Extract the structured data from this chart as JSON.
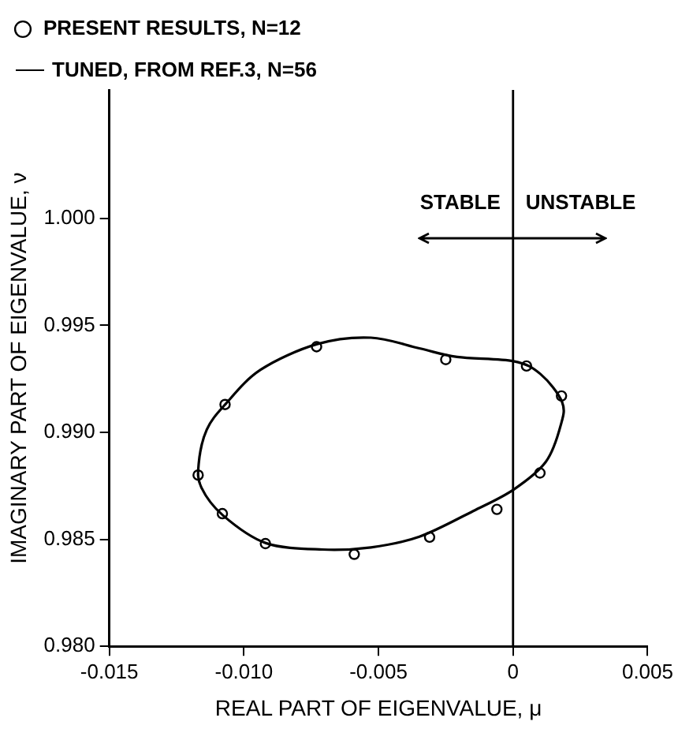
{
  "chart_data": {
    "type": "scatter",
    "xlabel": "REAL PART OF EIGENVALUE, μ",
    "ylabel": "IMAGINARY PART OF EIGENVALUE, ν",
    "xlim": [
      -0.015,
      0.005
    ],
    "ylim": [
      0.98,
      1.006
    ],
    "xticks": [
      {
        "value": -0.015,
        "label": "-0.015"
      },
      {
        "value": -0.01,
        "label": "-0.010"
      },
      {
        "value": -0.005,
        "label": "-0.005"
      },
      0,
      0.005
    ],
    "yticks": [
      {
        "value": 0.98,
        "label": "0.980"
      },
      0.985,
      {
        "value": 0.99,
        "label": "0.990"
      },
      0.995,
      {
        "value": 1,
        "label": "1.000"
      }
    ],
    "grid": false,
    "legend": "top",
    "series": [
      {
        "name": "PRESENT RESULTS, N=12",
        "color": "#000000",
        "marker": "circle",
        "x": [
          -0.0073,
          -0.0025,
          0.0005,
          0.0018,
          0.001,
          -0.0006,
          -0.0031,
          -0.0059,
          -0.0092,
          -0.0108,
          -0.0117,
          -0.0107
        ],
        "values": [
          0.994,
          0.9934,
          0.9931,
          0.9917,
          0.9881,
          0.9864,
          0.9851,
          0.9843,
          0.9848,
          0.9862,
          0.988,
          0.9913
        ]
      }
    ],
    "ref_lines": [
      {
        "axis": "x",
        "value": 0,
        "color": "#000000"
      }
    ],
    "annotations": [
      "STABLE",
      "UNSTABLE",
      "TUNED, FROM REF.3, N=56"
    ]
  }
}
